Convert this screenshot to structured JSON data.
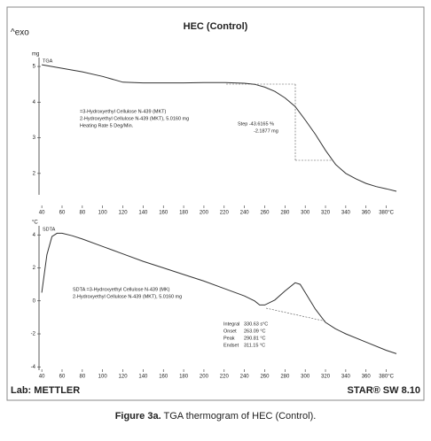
{
  "header": {
    "title": "HEC (Control)",
    "exo": "^exo"
  },
  "footer": {
    "lab": "Lab: METTLER",
    "software": "STAR® SW 8.10"
  },
  "caption": {
    "label": "Figure 3a.",
    "text": "TGA thermogram of HEC (Control)."
  },
  "chart_data": [
    {
      "type": "line",
      "y_label": "mg",
      "annotations": [
        "=3-Hydroxyethyl Cellulose N-439 (MKT)",
        "2-Hydroxyethyl Cellulose N-439 (MKT), 5.0160 mg",
        "Heating Rate 5 Deg/Min.",
        "Step -43.6165 %",
        "-2.1877 mg"
      ],
      "x": [
        40,
        50,
        60,
        80,
        100,
        120,
        140,
        160,
        180,
        200,
        220,
        240,
        250,
        260,
        270,
        280,
        290,
        300,
        310,
        320,
        330,
        340,
        350,
        360,
        370,
        380,
        390
      ],
      "series": [
        {
          "name": "TGA",
          "color": "#333333",
          "values": [
            5.05,
            5.0,
            4.95,
            4.85,
            4.72,
            4.56,
            4.54,
            4.54,
            4.54,
            4.55,
            4.55,
            4.53,
            4.5,
            4.42,
            4.3,
            4.12,
            3.88,
            3.5,
            3.1,
            2.65,
            2.25,
            2.0,
            1.85,
            1.72,
            1.63,
            1.57,
            1.5
          ]
        }
      ],
      "xlim": [
        32,
        390
      ],
      "xticks": [
        40,
        60,
        80,
        100,
        120,
        140,
        160,
        180,
        200,
        220,
        240,
        260,
        280,
        300,
        320,
        340,
        360,
        {
          "value": 380,
          "label": "380°C"
        }
      ],
      "ylim": [
        1.4,
        5.25
      ],
      "yticks": [
        2,
        3,
        4,
        5
      ]
    },
    {
      "type": "line",
      "y_label": "°C",
      "annotations": [
        "SDTA =3-Hydroxyethyl Cellulose N-439 (MK)",
        "2-Hydroxyethyl Cellulose N-439 (MKT), 5.0160 mg",
        "Integral",
        "330.63 s°C",
        "Onset",
        "263.09 °C",
        "Peak",
        "290.81 °C",
        "Endset",
        "311.15 °C"
      ],
      "x": [
        40,
        45,
        50,
        55,
        60,
        70,
        80,
        100,
        120,
        140,
        160,
        180,
        200,
        220,
        240,
        250,
        255,
        260,
        270,
        280,
        290,
        295,
        300,
        310,
        320,
        330,
        340,
        360,
        380,
        390
      ],
      "series": [
        {
          "name": "SDTA",
          "color": "#333333",
          "values": [
            0.5,
            2.8,
            3.9,
            4.1,
            4.1,
            3.95,
            3.75,
            3.3,
            2.85,
            2.4,
            2.0,
            1.6,
            1.2,
            0.75,
            0.3,
            0.0,
            -0.25,
            -0.25,
            0.05,
            0.6,
            1.1,
            1.0,
            0.5,
            -0.5,
            -1.3,
            -1.7,
            -2.0,
            -2.5,
            -3.0,
            -3.2
          ]
        }
      ],
      "xlim": [
        32,
        390
      ],
      "xticks": [
        40,
        60,
        80,
        100,
        120,
        140,
        160,
        180,
        200,
        220,
        240,
        260,
        280,
        300,
        320,
        340,
        360,
        {
          "value": 380,
          "label": "380°C"
        }
      ],
      "ylim": [
        -4.2,
        4.55
      ],
      "yticks": [
        -4,
        -2,
        0,
        2,
        4
      ]
    }
  ]
}
